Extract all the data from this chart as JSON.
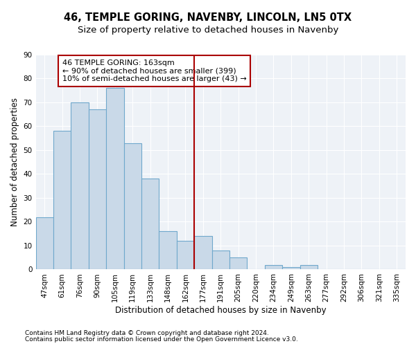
{
  "title": "46, TEMPLE GORING, NAVENBY, LINCOLN, LN5 0TX",
  "subtitle": "Size of property relative to detached houses in Navenby",
  "xlabel": "Distribution of detached houses by size in Navenby",
  "ylabel": "Number of detached properties",
  "categories": [
    "47sqm",
    "61sqm",
    "76sqm",
    "90sqm",
    "105sqm",
    "119sqm",
    "133sqm",
    "148sqm",
    "162sqm",
    "177sqm",
    "191sqm",
    "205sqm",
    "220sqm",
    "234sqm",
    "249sqm",
    "263sqm",
    "277sqm",
    "292sqm",
    "306sqm",
    "321sqm",
    "335sqm"
  ],
  "values": [
    22,
    58,
    70,
    67,
    76,
    53,
    38,
    16,
    12,
    14,
    8,
    5,
    0,
    2,
    1,
    2,
    0,
    0,
    0,
    0,
    0
  ],
  "bar_color": "#c9d9e8",
  "bar_edge_color": "#6fa8cc",
  "vline_x": 8.5,
  "vline_color": "#aa0000",
  "annotation_text": "46 TEMPLE GORING: 163sqm\n← 90% of detached houses are smaller (399)\n10% of semi-detached houses are larger (43) →",
  "annotation_box_color": "#ffffff",
  "annotation_box_edge_color": "#aa0000",
  "ylim": [
    0,
    90
  ],
  "yticks": [
    0,
    10,
    20,
    30,
    40,
    50,
    60,
    70,
    80,
    90
  ],
  "background_color": "#eef2f7",
  "footer1": "Contains HM Land Registry data © Crown copyright and database right 2024.",
  "footer2": "Contains public sector information licensed under the Open Government Licence v3.0.",
  "title_fontsize": 10.5,
  "subtitle_fontsize": 9.5,
  "axis_label_fontsize": 8.5,
  "tick_fontsize": 7.5,
  "annotation_fontsize": 8,
  "footer_fontsize": 6.5
}
